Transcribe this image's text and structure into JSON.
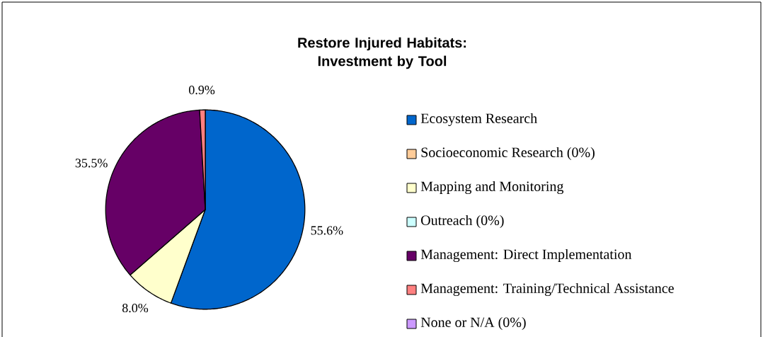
{
  "chart_data": {
    "type": "pie",
    "title": "Restore Injured Habitats: Investment by Tool",
    "categories": [
      "Ecosystem Research",
      "Socioeconomic Research (0%)",
      "Mapping and Monitoring",
      "Outreach (0%)",
      "Management: Direct Implementation",
      "Management: Training/Technical Assistance",
      "None or N/A (0%)"
    ],
    "values": [
      55.6,
      0,
      8.0,
      0,
      35.5,
      0.9,
      0
    ],
    "colors": [
      "#0066cc",
      "#ffcc99",
      "#ffffcc",
      "#ccffff",
      "#660066",
      "#ff8080",
      "#cc99ff"
    ],
    "value_labels": [
      "55.6%",
      null,
      "8.0%",
      null,
      "35.5%",
      "0.9%",
      null
    ],
    "legend": "right"
  }
}
